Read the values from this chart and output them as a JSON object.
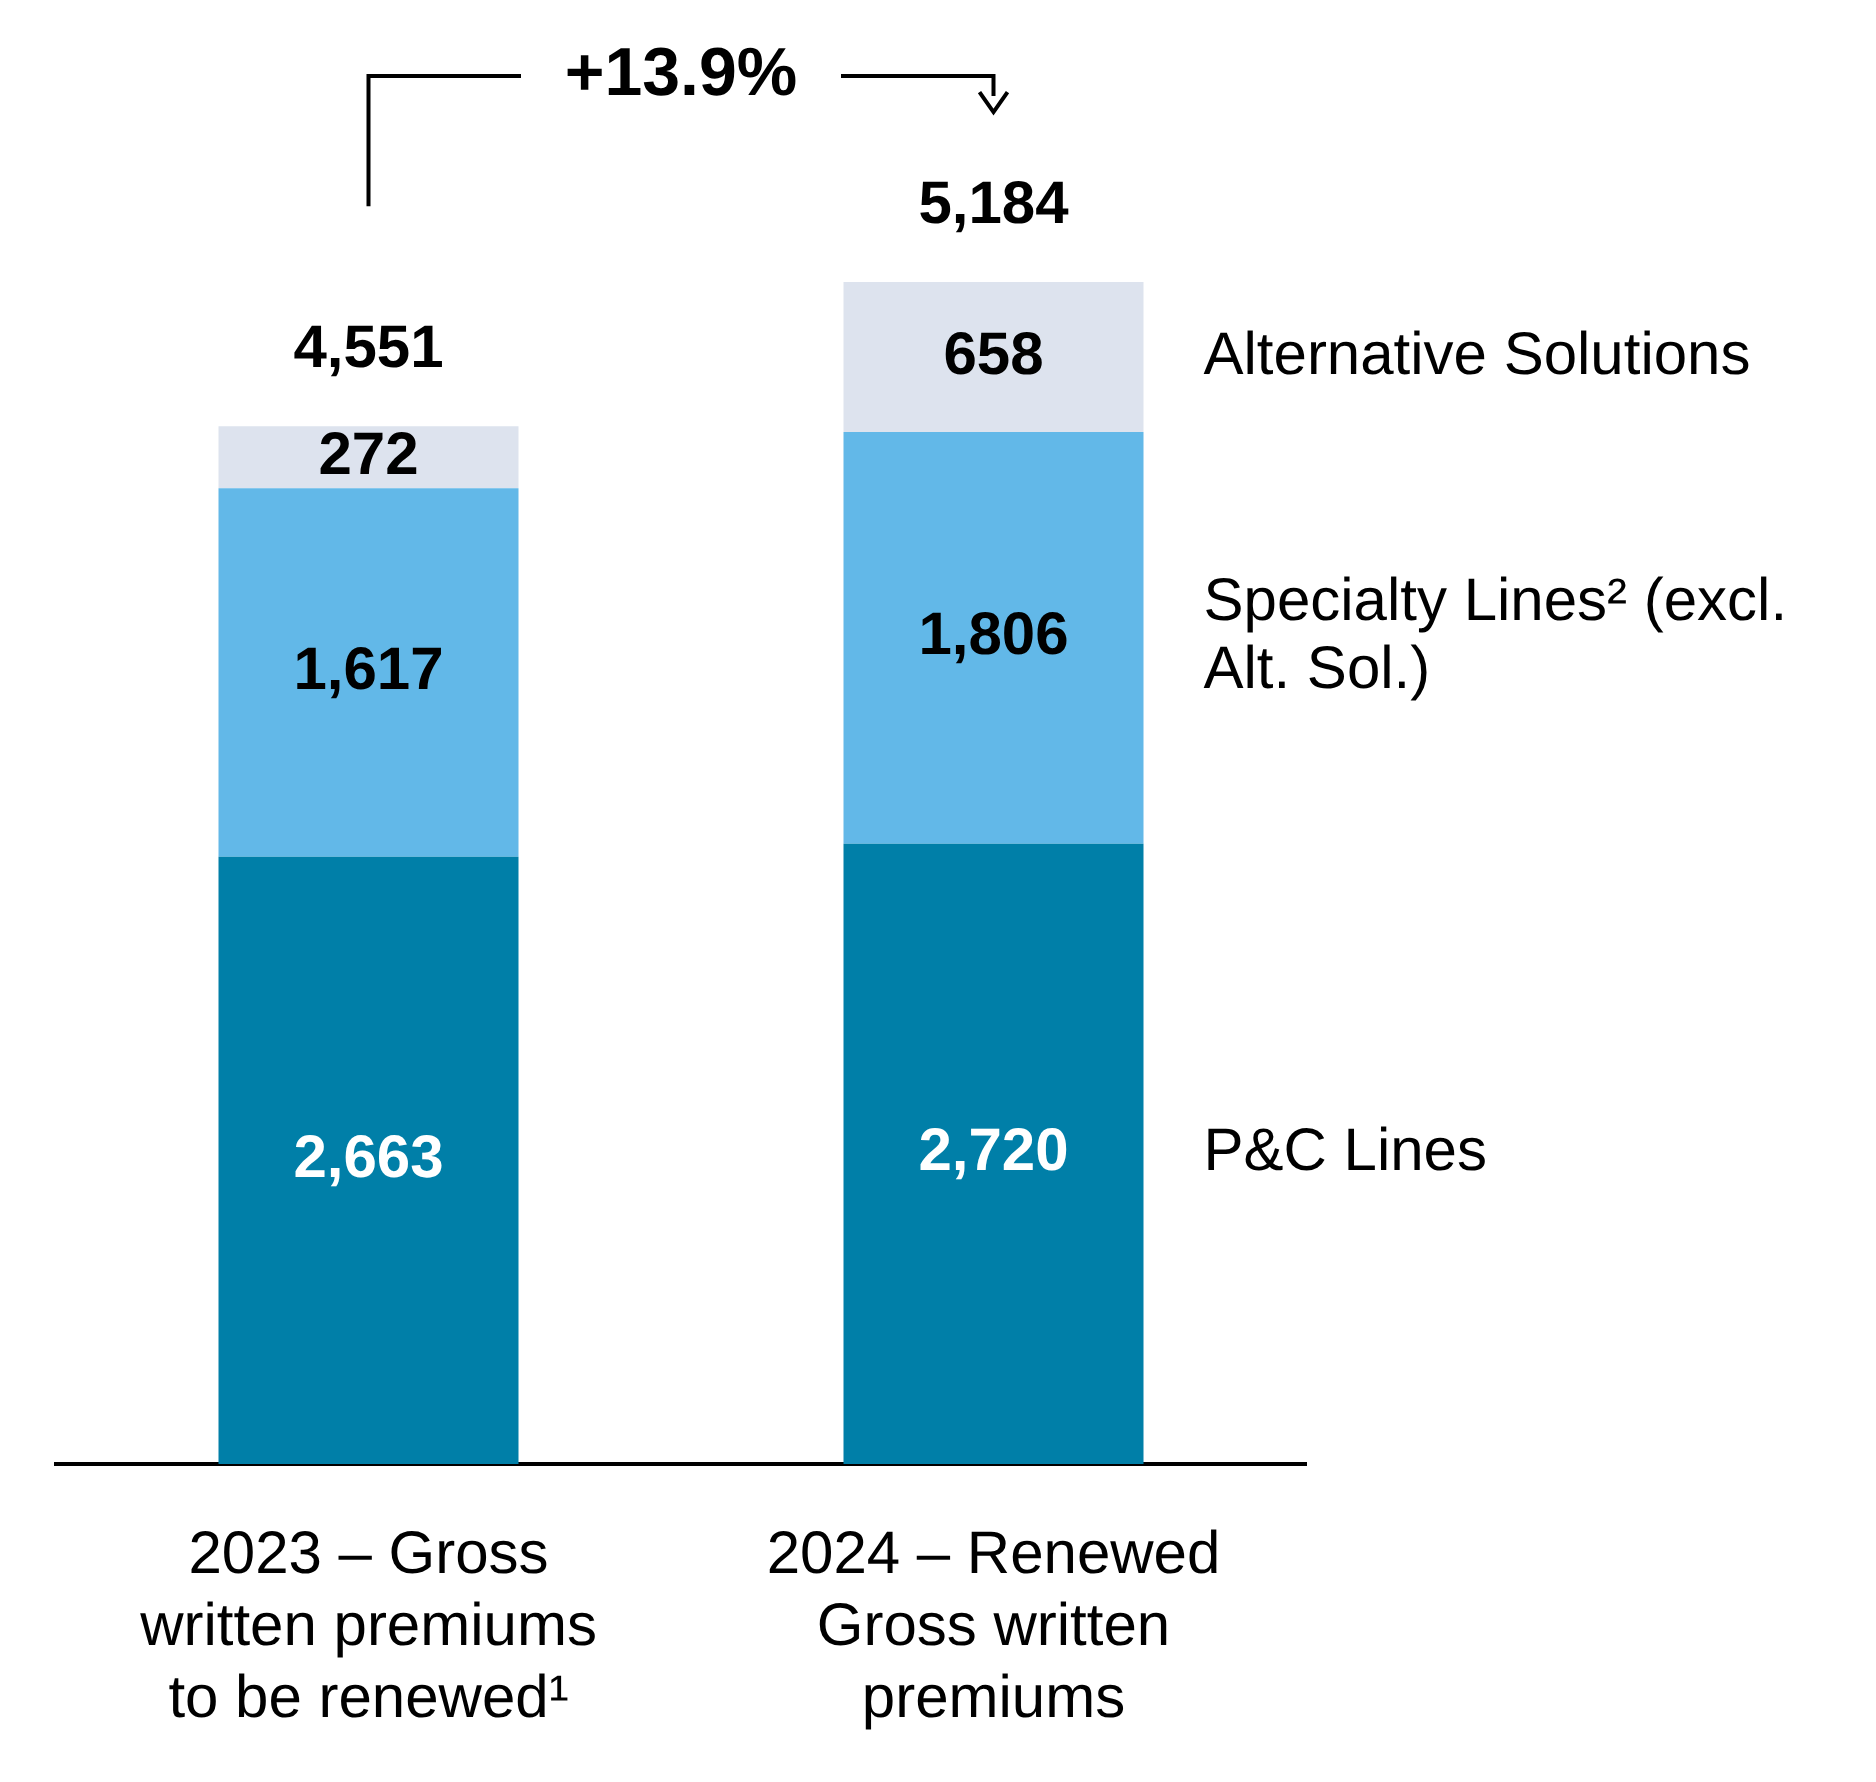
{
  "chart_data": {
    "type": "bar",
    "stacked": true,
    "categories": [
      "2023 – Gross written premiums to be renewed¹",
      "2024 – Renewed Gross written premiums"
    ],
    "series": [
      {
        "name": "P&C Lines",
        "color": "#007fa8",
        "values": [
          2663,
          2720
        ],
        "value_labels": [
          "2,663",
          "2,720"
        ]
      },
      {
        "name": "Specialty Lines² (excl. Alt. Sol.)",
        "color": "#62b8e8",
        "values": [
          1617,
          1806
        ],
        "value_labels": [
          "1,617",
          "1,806"
        ]
      },
      {
        "name": "Alternative Solutions",
        "color": "#dde3ee",
        "values": [
          272,
          658
        ],
        "value_labels": [
          "272",
          "658"
        ]
      }
    ],
    "totals": [
      "4,551",
      "5,184"
    ],
    "annotations": [
      "+13.9%"
    ]
  }
}
